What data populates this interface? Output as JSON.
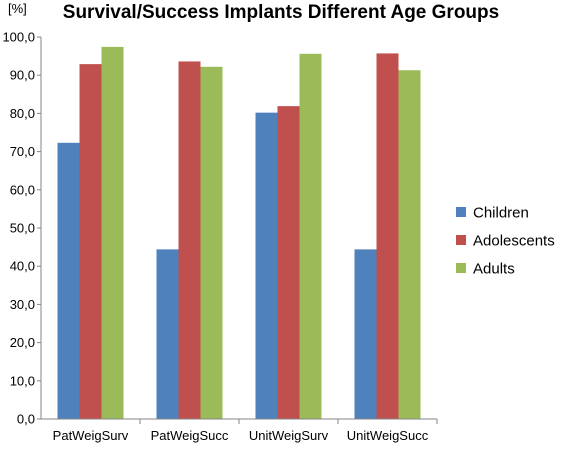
{
  "chart_data": {
    "type": "bar",
    "title": "Survival/Success Implants Different Age Groups",
    "ylabel": "[%]",
    "xlabel": "",
    "ylim": [
      0,
      100
    ],
    "yticks": [
      "0,0",
      "10,0",
      "20,0",
      "30,0",
      "40,0",
      "50,0",
      "60,0",
      "70,0",
      "80,0",
      "90,0",
      "100,0"
    ],
    "categories": [
      "PatWeigSurv",
      "PatWeigSucc",
      "UnitWeigSurv",
      "UnitWeigSucc"
    ],
    "series": [
      {
        "name": "Children",
        "color": "#4f81bd",
        "values": [
          72.3,
          44.4,
          80.2,
          44.4
        ]
      },
      {
        "name": "Adolescents",
        "color": "#c0504d",
        "values": [
          92.9,
          93.6,
          81.9,
          95.7
        ]
      },
      {
        "name": "Adults",
        "color": "#9bbb59",
        "values": [
          97.4,
          92.2,
          95.6,
          91.3
        ]
      }
    ],
    "grid": false,
    "legend": "right"
  }
}
